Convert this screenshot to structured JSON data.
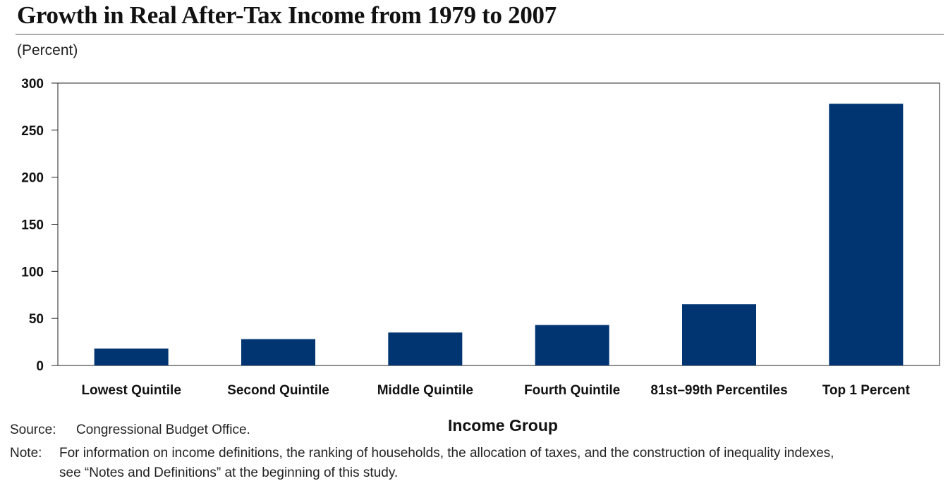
{
  "title": "Growth in Real After-Tax Income from 1979 to 2007",
  "unit_label": "(Percent)",
  "colors": {
    "bar": "#003572",
    "axis": "#222222"
  },
  "chart_data": {
    "type": "bar",
    "title": "Growth in Real After-Tax Income from 1979 to 2007",
    "xlabel": "Income Group",
    "ylabel": "(Percent)",
    "ylim": [
      0,
      300
    ],
    "yticks": [
      0,
      50,
      100,
      150,
      200,
      250,
      300
    ],
    "categories": [
      "Lowest Quintile",
      "Second Quintile",
      "Middle Quintile",
      "Fourth Quintile",
      "81st–99th Percentiles",
      "Top 1 Percent"
    ],
    "values": [
      18,
      28,
      35,
      43,
      65,
      278
    ],
    "grid": false
  },
  "source": {
    "label": "Source:",
    "text": "Congressional Budget Office."
  },
  "note": {
    "label": "Note:",
    "line1": "For information on income definitions, the ranking of households, the allocation of taxes, and the construction of inequality indexes,",
    "line2": "see “Notes and Definitions” at the beginning of this study."
  }
}
